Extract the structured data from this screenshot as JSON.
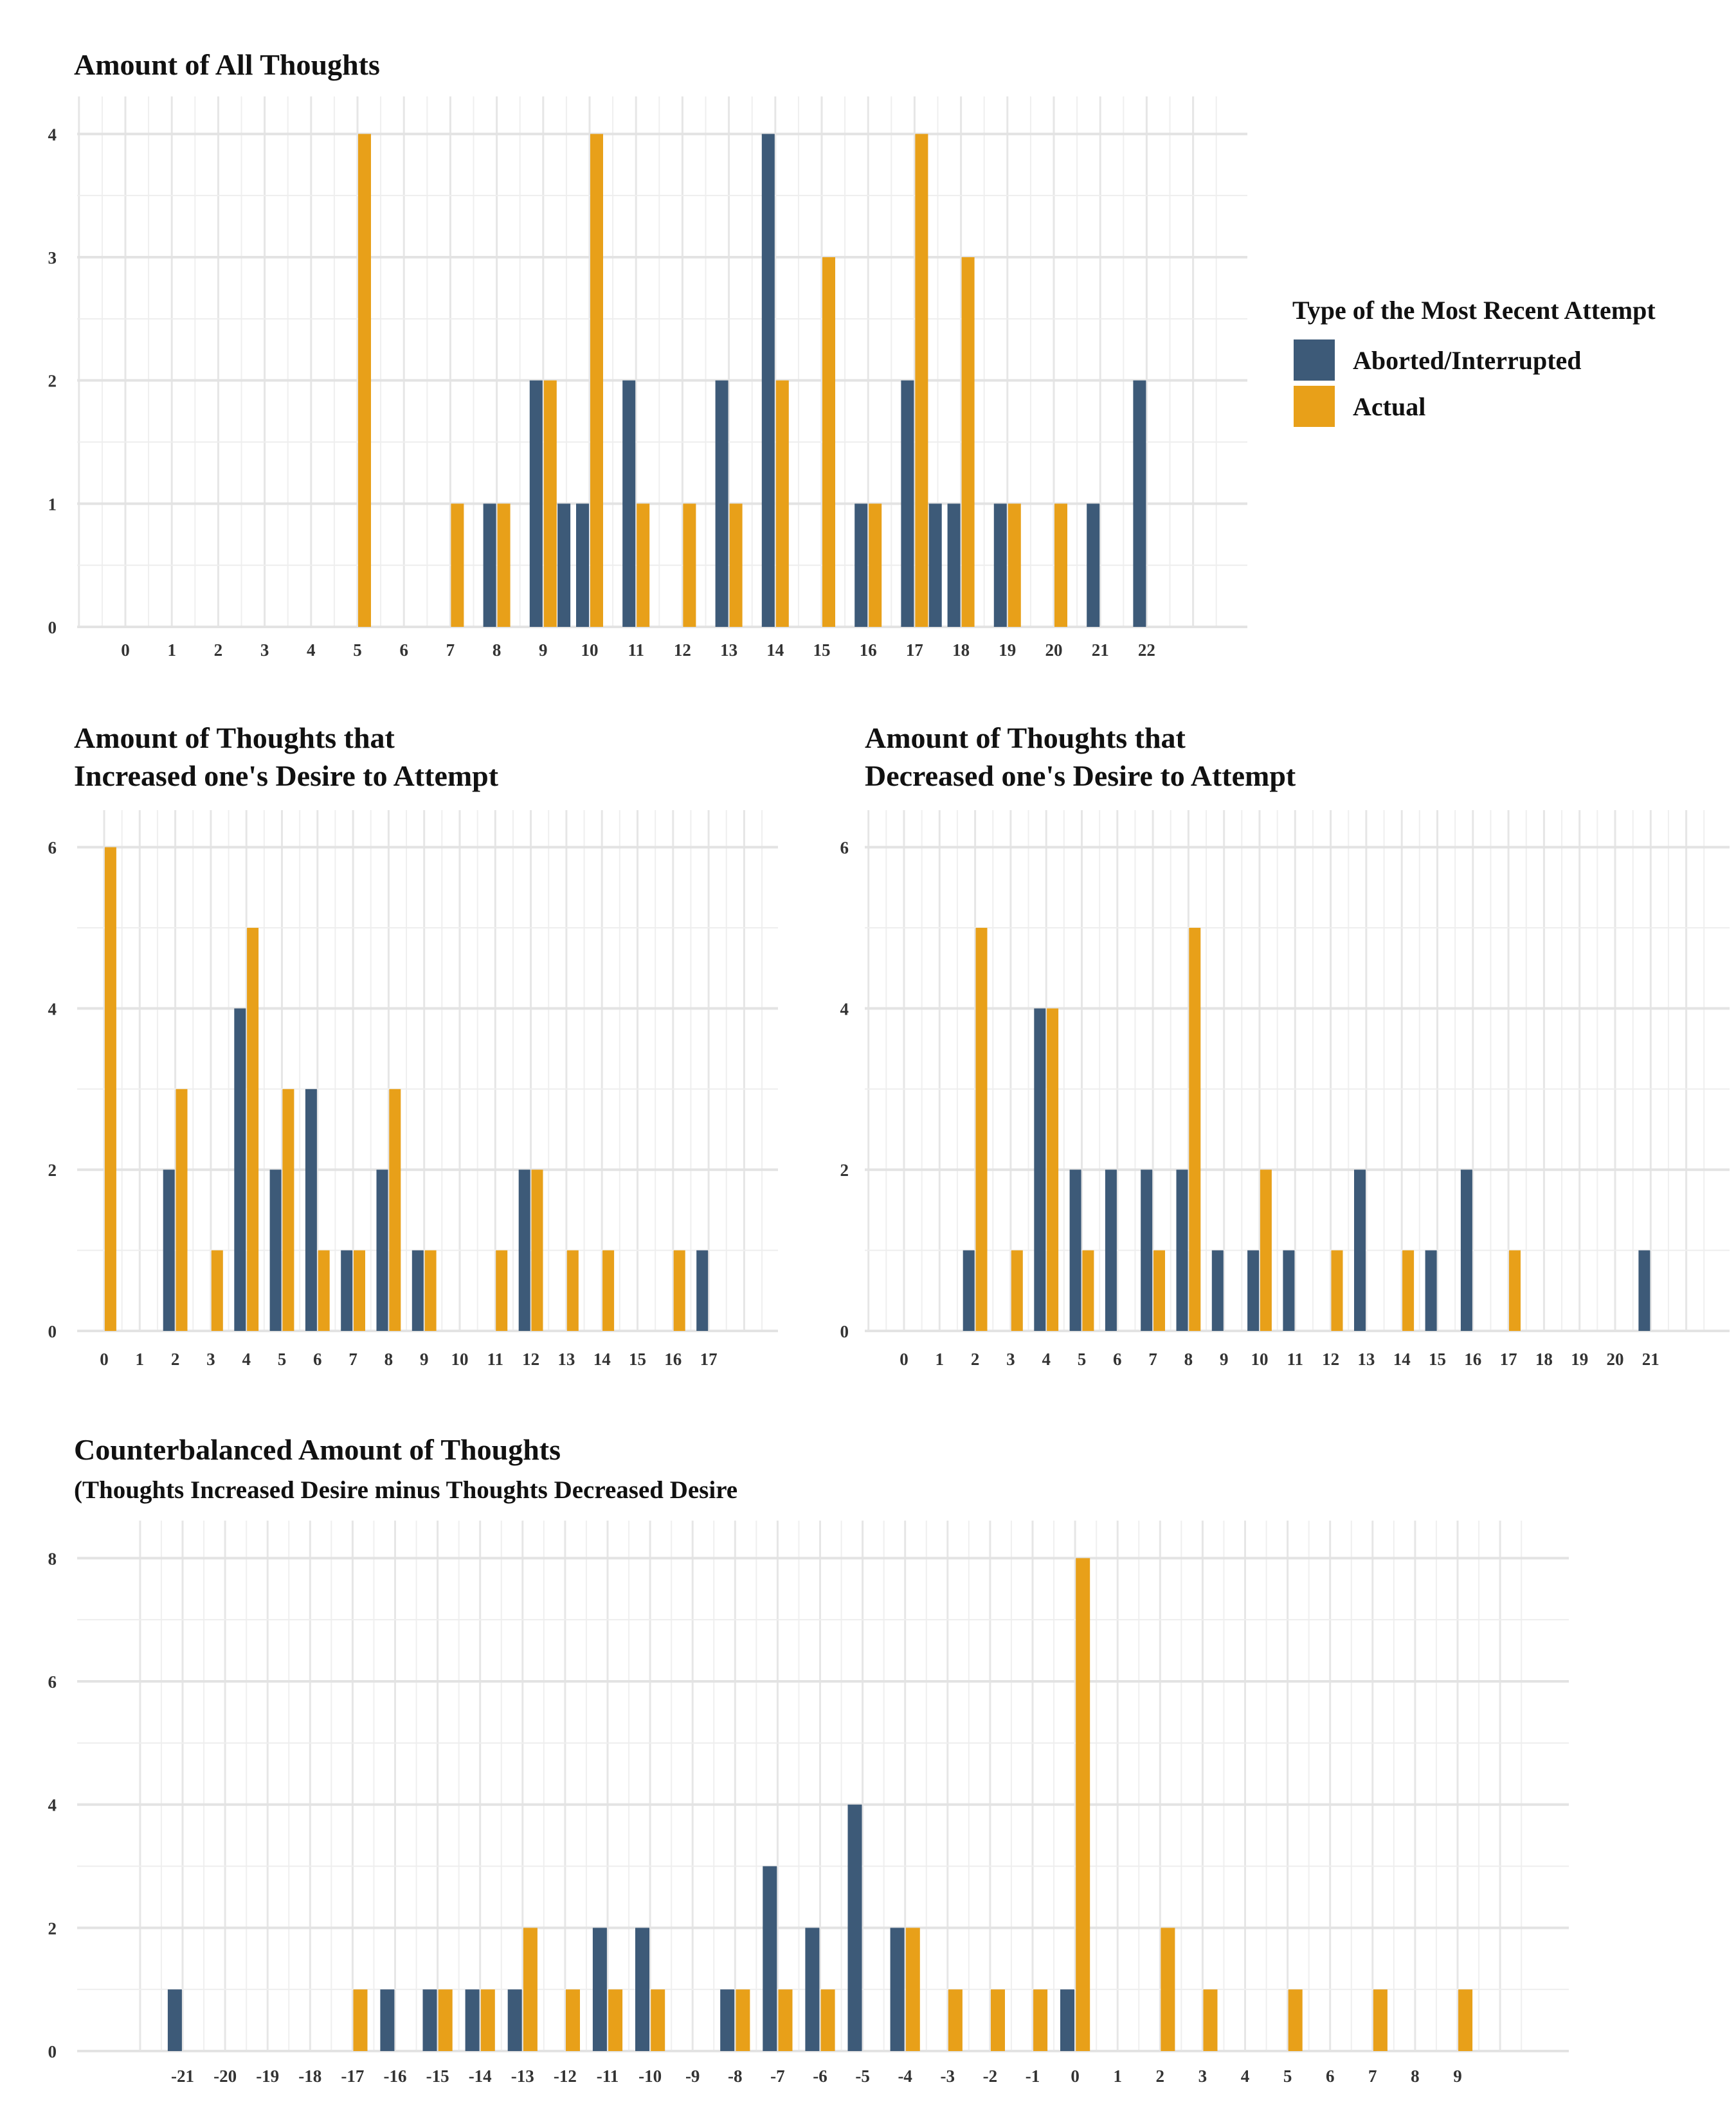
{
  "legend": {
    "title": "Type of the Most Recent Attempt",
    "entries": [
      {
        "label": "Aborted/Interrupted",
        "color": "#3d5a78"
      },
      {
        "label": "Actual",
        "color": "#e8a019"
      }
    ]
  },
  "chart_data": [
    {
      "type": "bar",
      "title": "Amount of All Thoughts",
      "subtitle": "",
      "categories": [
        "0",
        "1",
        "2",
        "3",
        "4",
        "5",
        "6",
        "7",
        "8",
        "9",
        "10",
        "11",
        "12",
        "13",
        "14",
        "15",
        "16",
        "17",
        "18",
        "19",
        "20",
        "21",
        "22"
      ],
      "yticks": [
        "0",
        "1",
        "2",
        "3",
        "4"
      ],
      "ylim": [
        0,
        4.2
      ],
      "series": [
        {
          "name": "Aborted/Interrupted",
          "color": "#3d5a78",
          "points": [
            [
              8,
              1
            ],
            [
              9,
              2
            ],
            [
              9.6,
              1
            ],
            [
              10,
              1
            ],
            [
              11,
              2
            ],
            [
              13,
              2
            ],
            [
              14,
              4
            ],
            [
              16,
              1
            ],
            [
              17,
              2
            ],
            [
              17.6,
              1
            ],
            [
              18,
              1
            ],
            [
              19,
              1
            ],
            [
              21,
              1
            ],
            [
              22,
              2
            ]
          ]
        },
        {
          "name": "Actual",
          "color": "#e8a019",
          "points": [
            [
              5,
              4
            ],
            [
              7,
              1
            ],
            [
              8,
              1
            ],
            [
              9,
              2
            ],
            [
              10,
              4
            ],
            [
              11,
              1
            ],
            [
              12,
              1
            ],
            [
              13,
              1
            ],
            [
              14,
              2
            ],
            [
              15,
              3
            ],
            [
              16,
              1
            ],
            [
              17,
              4
            ],
            [
              18,
              3
            ],
            [
              19,
              1
            ],
            [
              20,
              1
            ]
          ]
        }
      ],
      "grid": true,
      "legend_position": "right"
    },
    {
      "type": "bar",
      "title": "Amount of Thoughts that",
      "subtitle": "Increased one's Desire to Attempt",
      "categories": [
        "0",
        "1",
        "2",
        "3",
        "4",
        "5",
        "6",
        "7",
        "8",
        "9",
        "10",
        "11",
        "12",
        "13",
        "14",
        "15",
        "16",
        "17"
      ],
      "yticks": [
        "0",
        "2",
        "4",
        "6"
      ],
      "ylim": [
        0,
        6.3
      ],
      "series": [
        {
          "name": "Aborted/Interrupted",
          "color": "#3d5a78",
          "points": [
            [
              2,
              2
            ],
            [
              4,
              4
            ],
            [
              5,
              2
            ],
            [
              6,
              3
            ],
            [
              7,
              1
            ],
            [
              8,
              2
            ],
            [
              9,
              1
            ],
            [
              12,
              2
            ],
            [
              17,
              1
            ]
          ]
        },
        {
          "name": "Actual",
          "color": "#e8a019",
          "points": [
            [
              0,
              6
            ],
            [
              2,
              3
            ],
            [
              3,
              1
            ],
            [
              4,
              5
            ],
            [
              5,
              3
            ],
            [
              6,
              1
            ],
            [
              7,
              1
            ],
            [
              8,
              3
            ],
            [
              9,
              1
            ],
            [
              11,
              1
            ],
            [
              12,
              2
            ],
            [
              13,
              1
            ],
            [
              14,
              1
            ],
            [
              16,
              1
            ]
          ]
        }
      ],
      "grid": true
    },
    {
      "type": "bar",
      "title": "Amount of Thoughts that",
      "subtitle": "Decreased one's Desire to Attempt",
      "categories": [
        "0",
        "1",
        "2",
        "3",
        "4",
        "5",
        "6",
        "7",
        "8",
        "9",
        "10",
        "11",
        "12",
        "13",
        "14",
        "15",
        "16",
        "17",
        "18",
        "19",
        "20",
        "21"
      ],
      "yticks": [
        "0",
        "2",
        "4",
        "6"
      ],
      "ylim": [
        0,
        6.3
      ],
      "series": [
        {
          "name": "Aborted/Interrupted",
          "color": "#3d5a78",
          "points": [
            [
              2,
              1
            ],
            [
              4,
              4
            ],
            [
              5,
              2
            ],
            [
              6,
              2
            ],
            [
              7,
              2
            ],
            [
              8,
              2
            ],
            [
              9,
              1
            ],
            [
              10,
              1
            ],
            [
              11,
              1
            ],
            [
              13,
              2
            ],
            [
              15,
              1
            ],
            [
              16,
              2
            ],
            [
              21,
              1
            ]
          ]
        },
        {
          "name": "Actual",
          "color": "#e8a019",
          "points": [
            [
              2,
              5
            ],
            [
              3,
              1
            ],
            [
              4,
              4
            ],
            [
              5,
              1
            ],
            [
              7,
              1
            ],
            [
              8,
              5
            ],
            [
              10,
              2
            ],
            [
              12,
              1
            ],
            [
              14,
              1
            ],
            [
              17,
              1
            ]
          ]
        }
      ],
      "grid": true
    },
    {
      "type": "bar",
      "title": "Counterbalanced Amount of Thoughts",
      "subtitle": "(Thoughts Increased Desire minus Thoughts Decreased Desire",
      "categories": [
        "-21",
        "-20",
        "-19",
        "-18",
        "-17",
        "-16",
        "-15",
        "-14",
        "-13",
        "-12",
        "-11",
        "-10",
        "-9",
        "-8",
        "-7",
        "-6",
        "-5",
        "-4",
        "-3",
        "-2",
        "-1",
        "0",
        "1",
        "2",
        "3",
        "4",
        "5",
        "6",
        "7",
        "8",
        "9"
      ],
      "yticks": [
        "0",
        "2",
        "4",
        "6",
        "8"
      ],
      "ylim": [
        0,
        8.4
      ],
      "series": [
        {
          "name": "Aborted/Interrupted",
          "color": "#3d5a78",
          "points": [
            [
              -21,
              1
            ],
            [
              -16,
              1
            ],
            [
              -15,
              1
            ],
            [
              -14,
              1
            ],
            [
              -13,
              1
            ],
            [
              -11,
              2
            ],
            [
              -10,
              2
            ],
            [
              -8,
              1
            ],
            [
              -7,
              3
            ],
            [
              -6,
              2
            ],
            [
              -5,
              4
            ],
            [
              -4,
              2
            ],
            [
              0,
              1
            ]
          ]
        },
        {
          "name": "Actual",
          "color": "#e8a019",
          "points": [
            [
              -17,
              1
            ],
            [
              -15,
              1
            ],
            [
              -14,
              1
            ],
            [
              -13,
              2
            ],
            [
              -12,
              1
            ],
            [
              -11,
              1
            ],
            [
              -10,
              1
            ],
            [
              -8,
              1
            ],
            [
              -7,
              1
            ],
            [
              -6,
              1
            ],
            [
              -4,
              2
            ],
            [
              -3,
              1
            ],
            [
              -2,
              1
            ],
            [
              -1,
              1
            ],
            [
              0,
              8
            ],
            [
              2,
              2
            ],
            [
              3,
              1
            ],
            [
              5,
              1
            ],
            [
              7,
              1
            ],
            [
              9,
              1
            ]
          ]
        }
      ],
      "grid": true
    }
  ]
}
